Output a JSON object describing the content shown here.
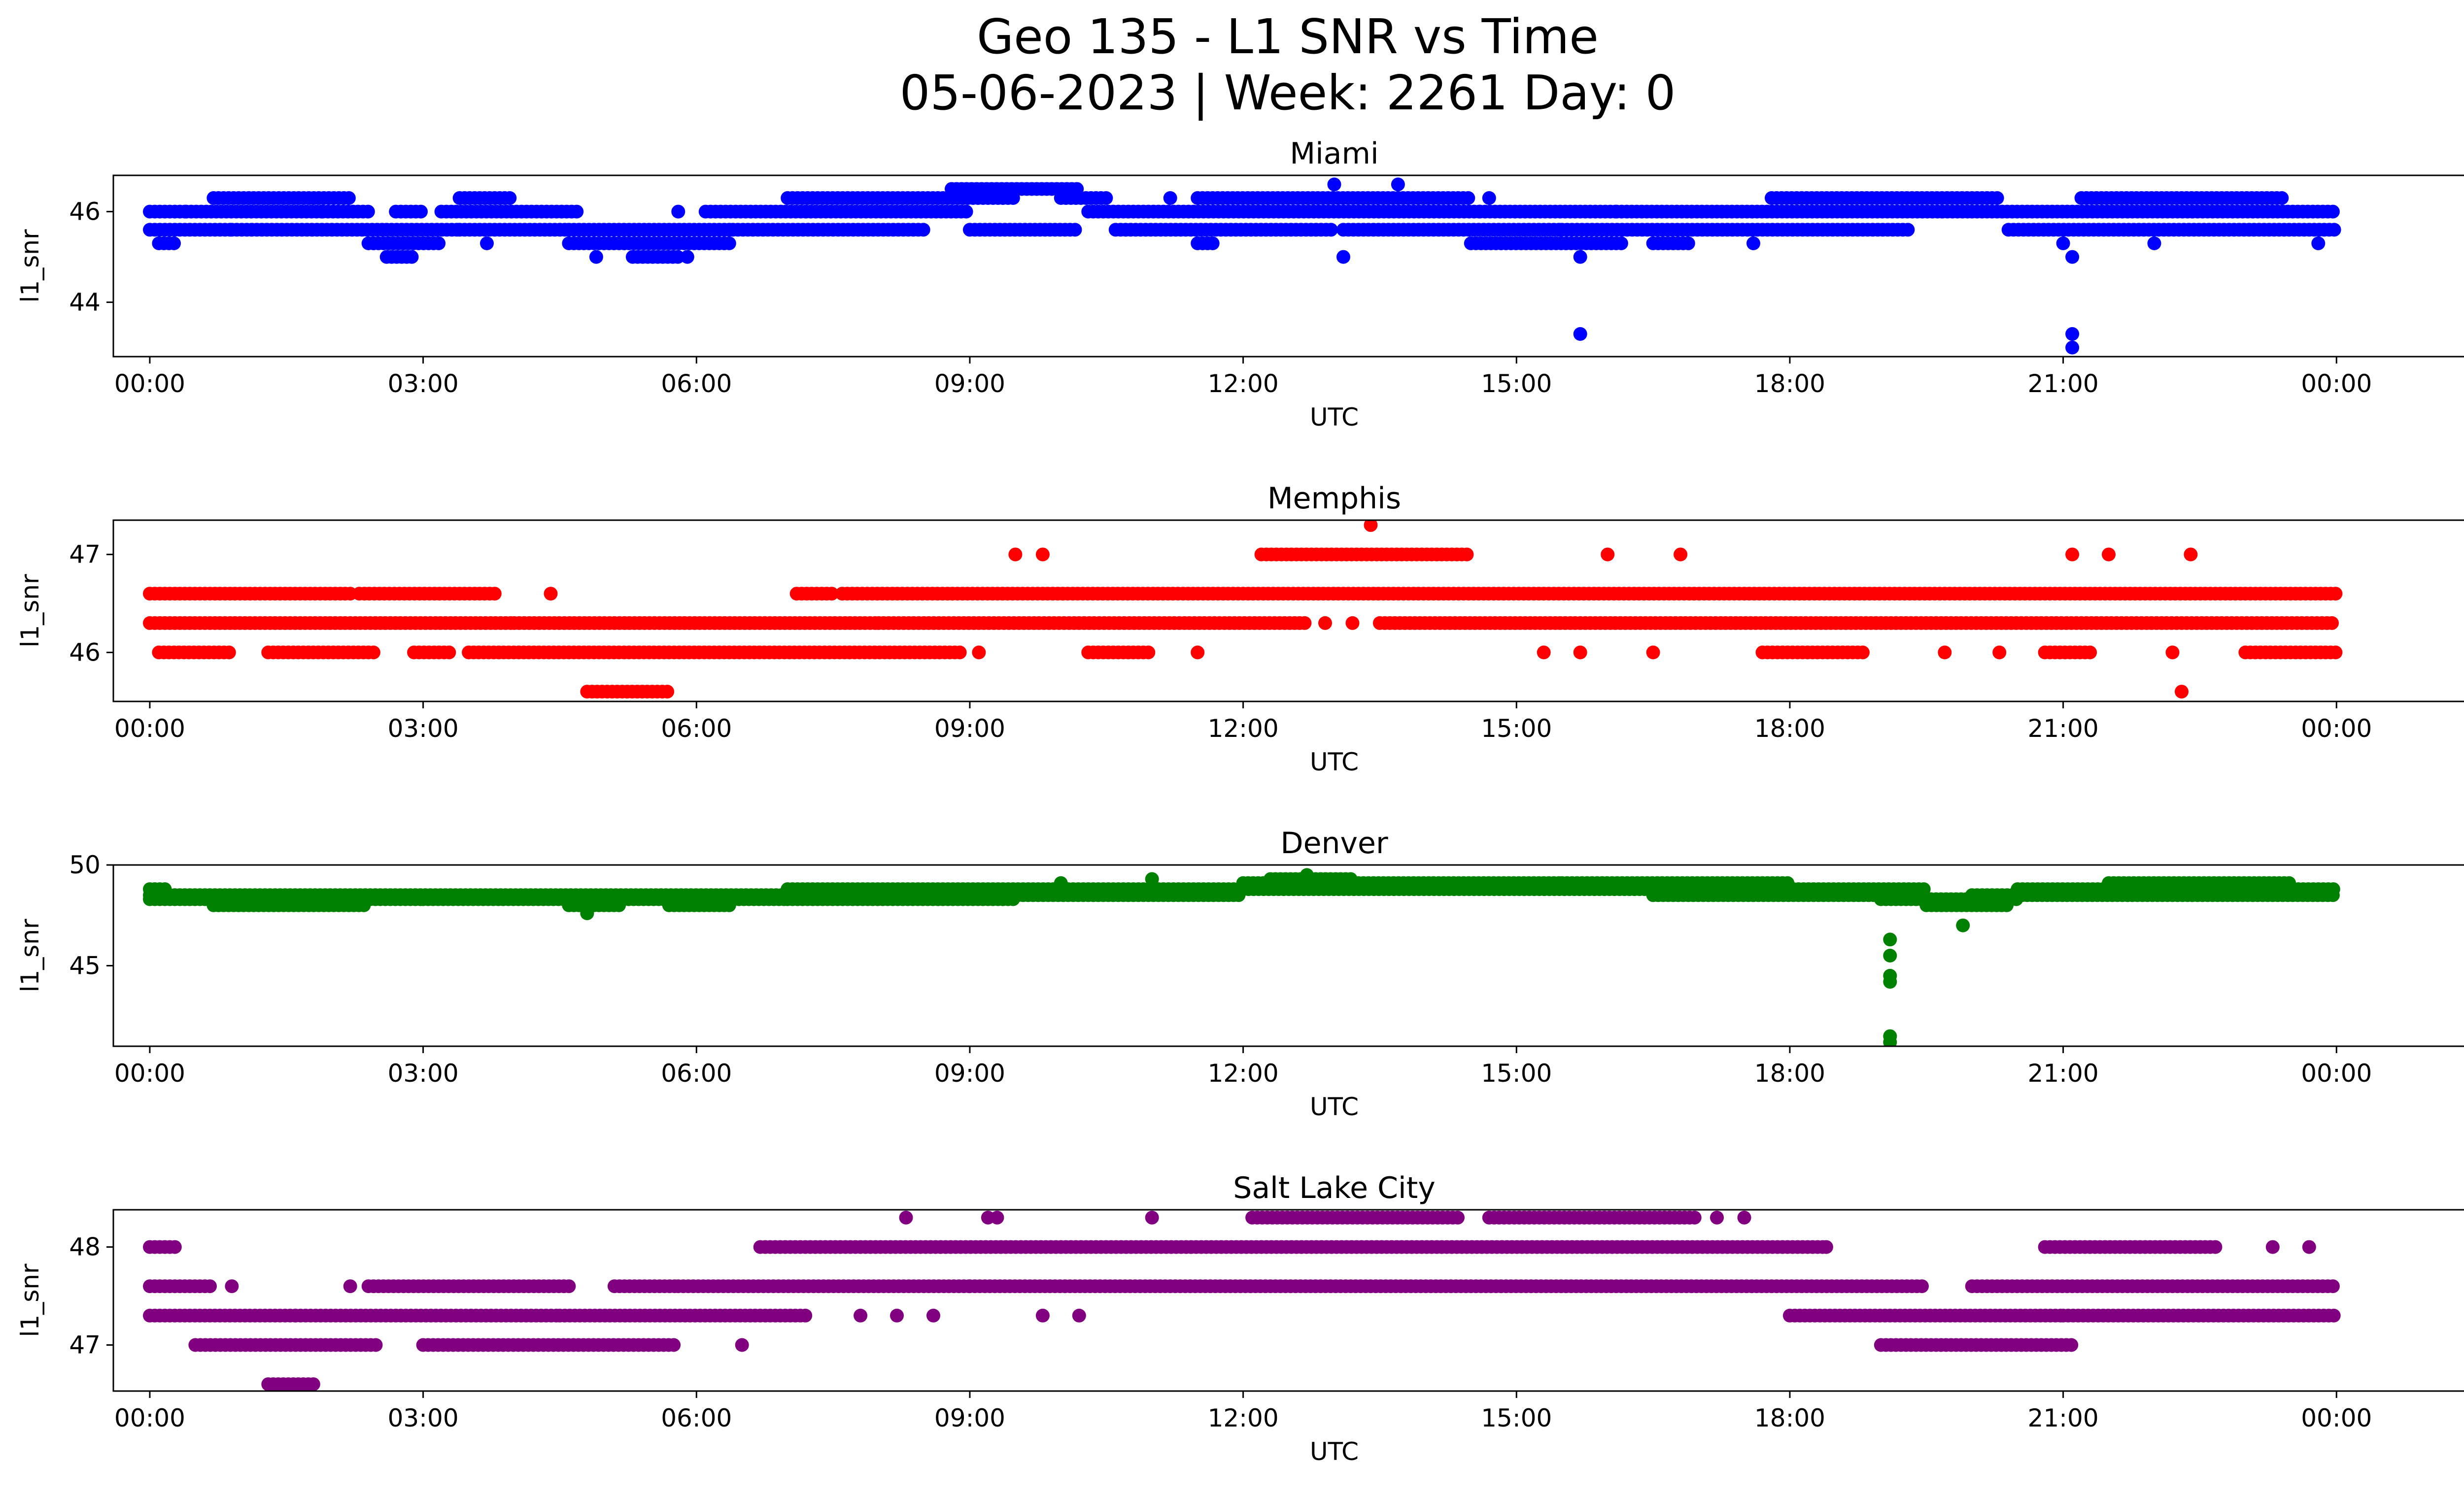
{
  "figure": {
    "title_line1": "Geo 135 - L1 SNR vs Time",
    "title_line2": "05-06-2023 | Week: 2261 Day: 0"
  },
  "chart_data": [
    {
      "type": "scatter",
      "title": "Miami",
      "xlabel": "UTC",
      "ylabel": "l1_snr",
      "color": "#0000ff",
      "x_unit": "hours UTC",
      "xlim": [
        -0.4,
        26.4
      ],
      "ylim": [
        42.8,
        46.8
      ],
      "xticks": [
        0,
        3,
        6,
        9,
        12,
        15,
        18,
        21,
        24
      ],
      "xtick_labels": [
        "00:00",
        "03:00",
        "06:00",
        "09:00",
        "12:00",
        "15:00",
        "18:00",
        "21:00",
        "00:00"
      ],
      "yticks": [
        44,
        46
      ],
      "ytick_labels": [
        "44",
        "46"
      ],
      "bands": [
        {
          "y": 46.0,
          "ranges": [
            [
              0.0,
              0.4
            ],
            [
              0.4,
              1.9
            ],
            [
              1.9,
              2.4
            ],
            [
              2.7,
              3.0
            ],
            [
              3.2,
              4.7
            ],
            [
              6.1,
              7.2
            ],
            [
              7.2,
              9.0
            ],
            [
              10.3,
              14.6
            ],
            [
              14.6,
              16.1
            ],
            [
              16.1,
              20.0
            ],
            [
              20.0,
              24.0
            ]
          ]
        },
        {
          "y": 45.6,
          "ranges": [
            [
              0.0,
              0.9
            ],
            [
              0.9,
              2.6
            ],
            [
              2.6,
              3.4
            ],
            [
              3.4,
              4.6
            ],
            [
              4.6,
              6.4
            ],
            [
              6.4,
              8.5
            ],
            [
              9.0,
              10.2
            ],
            [
              10.6,
              13.0
            ],
            [
              13.1,
              15.5
            ],
            [
              15.5,
              19.3
            ],
            [
              20.4,
              24.0
            ]
          ]
        },
        {
          "y": 46.3,
          "ranges": [
            [
              0.7,
              2.2
            ],
            [
              3.4,
              4.0
            ],
            [
              7.0,
              9.5
            ],
            [
              10.0,
              10.5
            ],
            [
              11.5,
              14.5
            ],
            [
              17.8,
              20.3
            ],
            [
              21.2,
              23.4
            ]
          ]
        },
        {
          "y": 45.3,
          "ranges": [
            [
              0.1,
              0.3
            ],
            [
              2.4,
              3.2
            ],
            [
              4.6,
              6.4
            ],
            [
              11.5,
              11.7
            ],
            [
              14.5,
              16.2
            ],
            [
              16.5,
              16.9
            ]
          ]
        },
        {
          "y": 46.5,
          "ranges": [
            [
              8.8,
              10.2
            ]
          ]
        },
        {
          "y": 45.0,
          "ranges": [
            [
              2.6,
              2.9
            ],
            [
              5.3,
              5.8
            ]
          ]
        }
      ],
      "points": [
        {
          "x": 3.7,
          "y": 45.3
        },
        {
          "x": 4.9,
          "y": 45.0
        },
        {
          "x": 5.8,
          "y": 46.0
        },
        {
          "x": 5.9,
          "y": 45.0
        },
        {
          "x": 11.2,
          "y": 46.3
        },
        {
          "x": 13.0,
          "y": 46.6
        },
        {
          "x": 13.1,
          "y": 45.0
        },
        {
          "x": 13.7,
          "y": 46.6
        },
        {
          "x": 14.7,
          "y": 46.3
        },
        {
          "x": 15.7,
          "y": 45.0
        },
        {
          "x": 15.7,
          "y": 43.3
        },
        {
          "x": 17.6,
          "y": 45.3
        },
        {
          "x": 21.0,
          "y": 45.3
        },
        {
          "x": 21.1,
          "y": 45.0
        },
        {
          "x": 21.1,
          "y": 43.3
        },
        {
          "x": 21.1,
          "y": 43.0
        },
        {
          "x": 22.0,
          "y": 45.3
        },
        {
          "x": 23.8,
          "y": 45.3
        }
      ]
    },
    {
      "type": "scatter",
      "title": "Memphis",
      "xlabel": "UTC",
      "ylabel": "l1_snr",
      "color": "#ff0000",
      "x_unit": "hours UTC",
      "xlim": [
        -0.4,
        26.4
      ],
      "ylim": [
        45.5,
        47.35
      ],
      "xticks": [
        0,
        3,
        6,
        9,
        12,
        15,
        18,
        21,
        24
      ],
      "xtick_labels": [
        "00:00",
        "03:00",
        "06:00",
        "09:00",
        "12:00",
        "15:00",
        "18:00",
        "21:00",
        "00:00"
      ],
      "yticks": [
        46,
        47
      ],
      "ytick_labels": [
        "46",
        "47"
      ],
      "bands": [
        {
          "y": 46.3,
          "ranges": [
            [
              0.0,
              4.0
            ],
            [
              4.0,
              8.0
            ],
            [
              8.0,
              12.7
            ],
            [
              13.5,
              24.0
            ]
          ]
        },
        {
          "y": 46.6,
          "ranges": [
            [
              0.0,
              2.2
            ],
            [
              2.3,
              3.8
            ],
            [
              7.1,
              7.5
            ],
            [
              7.6,
              24.0
            ]
          ]
        },
        {
          "y": 46.0,
          "ranges": [
            [
              0.1,
              0.9
            ],
            [
              1.3,
              2.5
            ],
            [
              2.9,
              3.3
            ],
            [
              3.5,
              8.9
            ],
            [
              10.3,
              11.0
            ],
            [
              17.7,
              18.8
            ],
            [
              20.8,
              21.3
            ],
            [
              23.0,
              24.0
            ]
          ]
        },
        {
          "y": 47.0,
          "ranges": [
            [
              12.2,
              14.5
            ]
          ]
        },
        {
          "y": 45.6,
          "ranges": [
            [
              4.8,
              5.7
            ]
          ]
        }
      ],
      "points": [
        {
          "x": 4.4,
          "y": 46.6
        },
        {
          "x": 9.1,
          "y": 46.0
        },
        {
          "x": 9.5,
          "y": 47.0
        },
        {
          "x": 9.8,
          "y": 47.0
        },
        {
          "x": 11.5,
          "y": 46.0
        },
        {
          "x": 12.9,
          "y": 46.3
        },
        {
          "x": 13.2,
          "y": 46.3
        },
        {
          "x": 13.4,
          "y": 47.3
        },
        {
          "x": 15.3,
          "y": 46.0
        },
        {
          "x": 15.7,
          "y": 46.0
        },
        {
          "x": 16.0,
          "y": 47.0
        },
        {
          "x": 16.5,
          "y": 46.0
        },
        {
          "x": 16.8,
          "y": 47.0
        },
        {
          "x": 19.7,
          "y": 46.0
        },
        {
          "x": 20.3,
          "y": 46.0
        },
        {
          "x": 21.1,
          "y": 47.0
        },
        {
          "x": 21.5,
          "y": 47.0
        },
        {
          "x": 22.2,
          "y": 46.0
        },
        {
          "x": 22.3,
          "y": 45.6
        },
        {
          "x": 22.4,
          "y": 47.0
        }
      ]
    },
    {
      "type": "scatter",
      "title": "Denver",
      "xlabel": "UTC",
      "ylabel": "l1_snr",
      "color": "#008000",
      "x_unit": "hours UTC",
      "xlim": [
        -0.4,
        26.4
      ],
      "ylim": [
        41.0,
        50.0
      ],
      "xticks": [
        0,
        3,
        6,
        9,
        12,
        15,
        18,
        21,
        24
      ],
      "xtick_labels": [
        "00:00",
        "03:00",
        "06:00",
        "09:00",
        "12:00",
        "15:00",
        "18:00",
        "21:00",
        "00:00"
      ],
      "yticks": [
        45,
        50
      ],
      "ytick_labels": [
        "45",
        "50"
      ],
      "bands": [
        {
          "y": 48.3,
          "ranges": [
            [
              0.0,
              3.0
            ],
            [
              3.0,
              7.0
            ],
            [
              7.0,
              9.5
            ],
            [
              19.0,
              20.5
            ]
          ]
        },
        {
          "y": 48.5,
          "ranges": [
            [
              0.0,
              7.0
            ],
            [
              7.0,
              12.0
            ],
            [
              16.5,
              19.0
            ],
            [
              20.0,
              24.0
            ]
          ]
        },
        {
          "y": 48.8,
          "ranges": [
            [
              0.0,
              0.2
            ],
            [
              7.0,
              16.5
            ],
            [
              16.5,
              19.5
            ],
            [
              20.5,
              24.0
            ]
          ]
        },
        {
          "y": 49.1,
          "ranges": [
            [
              12.0,
              15.5
            ],
            [
              15.5,
              18.0
            ],
            [
              21.5,
              23.5
            ]
          ]
        },
        {
          "y": 48.0,
          "ranges": [
            [
              0.7,
              2.4
            ],
            [
              4.6,
              5.2
            ],
            [
              5.7,
              6.4
            ],
            [
              19.5,
              20.4
            ]
          ]
        },
        {
          "y": 49.3,
          "ranges": [
            [
              12.3,
              13.2
            ]
          ]
        }
      ],
      "points": [
        {
          "x": 4.8,
          "y": 47.6
        },
        {
          "x": 10.0,
          "y": 49.1
        },
        {
          "x": 11.0,
          "y": 49.3
        },
        {
          "x": 12.7,
          "y": 49.5
        },
        {
          "x": 19.1,
          "y": 46.3
        },
        {
          "x": 19.1,
          "y": 45.5
        },
        {
          "x": 19.1,
          "y": 44.5
        },
        {
          "x": 19.1,
          "y": 44.2
        },
        {
          "x": 19.1,
          "y": 41.5
        },
        {
          "x": 19.1,
          "y": 41.2
        },
        {
          "x": 19.9,
          "y": 47.0
        }
      ]
    },
    {
      "type": "scatter",
      "title": "Salt Lake City",
      "xlabel": "UTC",
      "ylabel": "l1_snr",
      "color": "#800080",
      "x_unit": "hours UTC",
      "xlim": [
        -0.4,
        26.4
      ],
      "ylim": [
        46.53,
        48.38
      ],
      "xticks": [
        0,
        3,
        6,
        9,
        12,
        15,
        18,
        21,
        24
      ],
      "xtick_labels": [
        "00:00",
        "03:00",
        "06:00",
        "09:00",
        "12:00",
        "15:00",
        "18:00",
        "21:00",
        "00:00"
      ],
      "yticks": [
        47,
        48
      ],
      "ytick_labels": [
        "47",
        "48"
      ],
      "bands": [
        {
          "y": 47.6,
          "ranges": [
            [
              0.0,
              0.7
            ],
            [
              2.4,
              4.6
            ],
            [
              5.1,
              5.8
            ],
            [
              5.8,
              9.0
            ],
            [
              9.0,
              19.5
            ],
            [
              20.0,
              24.0
            ]
          ]
        },
        {
          "y": 47.3,
          "ranges": [
            [
              0.0,
              1.6
            ],
            [
              1.6,
              4.5
            ],
            [
              4.5,
              7.2
            ],
            [
              18.0,
              21.0
            ],
            [
              21.0,
              24.0
            ]
          ]
        },
        {
          "y": 47.0,
          "ranges": [
            [
              0.5,
              2.5
            ],
            [
              3.0,
              5.8
            ],
            [
              19.0,
              21.1
            ]
          ]
        },
        {
          "y": 48.0,
          "ranges": [
            [
              0.0,
              0.3
            ],
            [
              6.7,
              18.4
            ],
            [
              20.8,
              22.7
            ]
          ]
        },
        {
          "y": 48.3,
          "ranges": [
            [
              12.1,
              14.4
            ],
            [
              14.7,
              17.0
            ]
          ]
        },
        {
          "y": 46.6,
          "ranges": [
            [
              1.3,
              1.8
            ]
          ]
        }
      ],
      "points": [
        {
          "x": 0.9,
          "y": 47.6
        },
        {
          "x": 2.2,
          "y": 47.6
        },
        {
          "x": 6.5,
          "y": 47.0
        },
        {
          "x": 7.8,
          "y": 47.3
        },
        {
          "x": 8.2,
          "y": 47.3
        },
        {
          "x": 8.3,
          "y": 48.3
        },
        {
          "x": 8.6,
          "y": 47.3
        },
        {
          "x": 9.2,
          "y": 48.3
        },
        {
          "x": 9.3,
          "y": 48.3
        },
        {
          "x": 9.8,
          "y": 47.3
        },
        {
          "x": 10.2,
          "y": 47.3
        },
        {
          "x": 11.0,
          "y": 48.3
        },
        {
          "x": 17.2,
          "y": 48.3
        },
        {
          "x": 17.5,
          "y": 48.3
        },
        {
          "x": 18.4,
          "y": 48.0
        },
        {
          "x": 23.3,
          "y": 48.0
        },
        {
          "x": 23.7,
          "y": 48.0
        }
      ]
    }
  ]
}
